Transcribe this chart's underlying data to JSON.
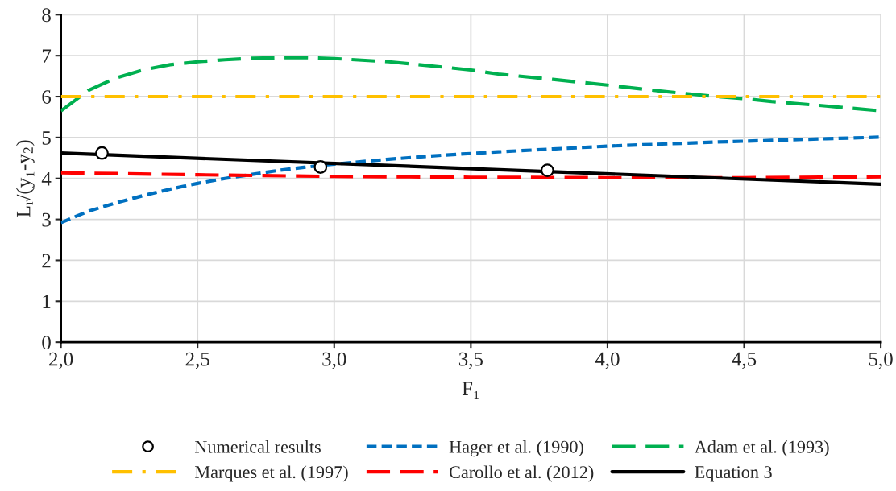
{
  "chart_data": {
    "type": "line",
    "xlabel": "F₁",
    "ylabel": "L$_{r}$/(y₁-y$_{2}$)",
    "xlim": [
      2.0,
      5.0
    ],
    "ylim": [
      0,
      8
    ],
    "xticks": [
      {
        "value": 2.0,
        "label": "2,0"
      },
      {
        "value": 2.5,
        "label": "2,5"
      },
      {
        "value": 3.0,
        "label": "3,0"
      },
      {
        "value": 3.5,
        "label": "3,5"
      },
      {
        "value": 4.0,
        "label": "4,0"
      },
      {
        "value": 4.5,
        "label": "4,5"
      },
      {
        "value": 5.0,
        "label": "5,0"
      }
    ],
    "yticks": [
      0,
      1,
      2,
      3,
      4,
      5,
      6,
      7,
      8
    ],
    "grid": true,
    "legend": "bottom",
    "series": [
      {
        "name": "Numerical results",
        "type": "scatter",
        "color": "#000000",
        "marker": "circle",
        "x": [
          2.15,
          2.95,
          3.78
        ],
        "values": [
          4.62,
          4.28,
          4.2
        ]
      },
      {
        "name": "Hager et al. (1990)",
        "color": "#0070c0",
        "line_style": "dotted",
        "x": [
          2.0,
          2.1,
          2.2,
          2.3,
          2.4,
          2.5,
          2.6,
          2.7,
          2.8,
          2.9,
          3.0,
          3.2,
          3.4,
          3.5,
          3.6,
          3.8,
          4.0,
          4.2,
          4.4,
          4.5,
          4.6,
          4.8,
          5.0
        ],
        "values": [
          2.92,
          3.2,
          3.4,
          3.58,
          3.74,
          3.88,
          4.0,
          4.1,
          4.2,
          4.28,
          4.35,
          4.47,
          4.57,
          4.61,
          4.65,
          4.72,
          4.79,
          4.84,
          4.89,
          4.91,
          4.93,
          4.97,
          5.01
        ]
      },
      {
        "name": "Adam et al. (1993)",
        "color": "#00b050",
        "line_style": "dashed",
        "x": [
          2.0,
          2.1,
          2.2,
          2.3,
          2.4,
          2.5,
          2.6,
          2.7,
          2.8,
          2.9,
          3.0,
          3.2,
          3.4,
          3.5,
          3.6,
          3.8,
          4.0,
          4.2,
          4.4,
          4.5,
          4.6,
          4.8,
          5.0
        ],
        "values": [
          5.65,
          6.15,
          6.45,
          6.65,
          6.78,
          6.85,
          6.9,
          6.94,
          6.95,
          6.95,
          6.93,
          6.85,
          6.72,
          6.65,
          6.55,
          6.42,
          6.28,
          6.13,
          6.0,
          5.95,
          5.88,
          5.77,
          5.65
        ]
      },
      {
        "name": "Marques et al. (1997)",
        "color": "#ffc000",
        "line_style": "dashdot",
        "x": [
          2.0,
          5.0
        ],
        "values": [
          6.0,
          6.0
        ]
      },
      {
        "name": "Carollo et al. (2012)",
        "color": "#ff0000",
        "line_style": "dashed",
        "x": [
          2.0,
          2.5,
          3.0,
          3.5,
          4.0,
          4.5,
          5.0
        ],
        "values": [
          4.14,
          4.09,
          4.05,
          4.03,
          4.02,
          4.02,
          4.04
        ]
      },
      {
        "name": "Equation 3",
        "color": "#000000",
        "line_style": "solid",
        "x": [
          2.0,
          5.0
        ],
        "values": [
          4.62,
          3.86
        ]
      }
    ]
  }
}
